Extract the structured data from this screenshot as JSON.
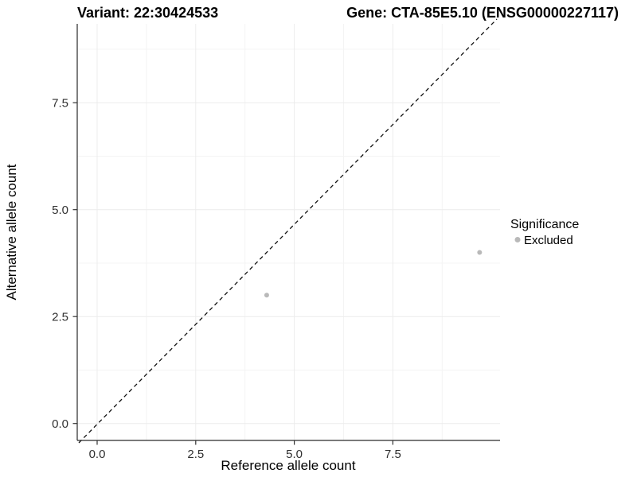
{
  "titles": {
    "left": "Variant: 22:30424533",
    "right": "Gene: CTA-85E5.10 (ENSG00000227117)"
  },
  "chart_data": {
    "type": "scatter",
    "title_left": "Variant: 22:30424533",
    "title_right": "Gene: CTA-85E5.10 (ENSG00000227117)",
    "xlabel": "Reference allele count",
    "ylabel": "Alternative allele count",
    "x_ticks": [
      {
        "value": 0.0,
        "label": "0.0"
      },
      {
        "value": 2.5,
        "label": "2.5"
      },
      {
        "value": 5.0,
        "label": "5.0"
      },
      {
        "value": 7.5,
        "label": "7.5"
      }
    ],
    "y_ticks": [
      {
        "value": 0.0,
        "label": "0.0"
      },
      {
        "value": 2.5,
        "label": "2.5"
      },
      {
        "value": 5.0,
        "label": "5.0"
      },
      {
        "value": 7.5,
        "label": "7.5"
      }
    ],
    "x_minor_ticks": [
      1.25,
      3.75,
      6.25,
      8.75
    ],
    "y_minor_ticks": [
      1.25,
      3.75,
      6.25,
      8.75
    ],
    "xlim": [
      -0.5,
      10.2
    ],
    "ylim": [
      -0.4,
      9.35
    ],
    "grid": true,
    "points": [
      {
        "x": 4.3,
        "y": 3.0,
        "series": "Excluded"
      },
      {
        "x": 9.7,
        "y": 4.0,
        "series": "Excluded"
      }
    ],
    "reference_line": {
      "style": "dashed",
      "slope": 1,
      "intercept": 0,
      "description": "identity line y = x"
    },
    "legend": {
      "position": "right",
      "title": "Significance",
      "entries": [
        {
          "label": "Excluded",
          "color": "#b9b9b9"
        }
      ]
    },
    "colors": {
      "point": "#b9b9b9",
      "grid_major": "#ececec",
      "grid_minor": "#f4f4f4",
      "axis_line": "#2a2a2a",
      "tick_mark": "#333333",
      "dashed_line": "#111111",
      "background": "#ffffff"
    }
  }
}
